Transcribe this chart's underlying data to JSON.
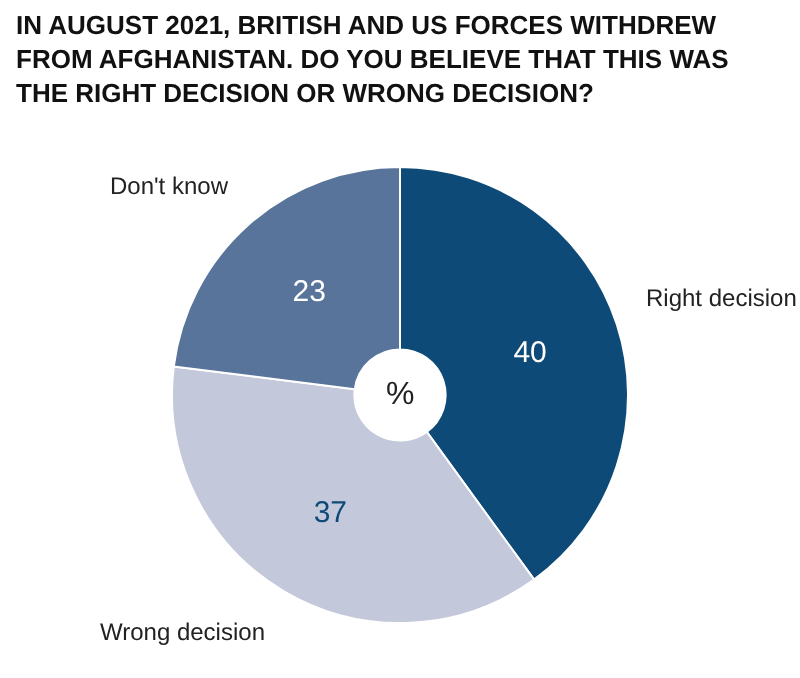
{
  "chart_data": {
    "type": "donut",
    "title": "IN AUGUST 2021, BRITISH AND US FORCES WITHDREW FROM AFGHANISTAN. DO YOU BELIEVE THAT THIS WAS THE RIGHT DECISION OR WRONG DECISION?",
    "categories": [
      "Right decision",
      "Wrong decision",
      "Don't know"
    ],
    "values": [
      40,
      37,
      23
    ],
    "colors": [
      "#0e4a77",
      "#c3c9db",
      "#58749a"
    ],
    "data_labels": true,
    "legend": false,
    "annotations": [
      "%"
    ]
  }
}
